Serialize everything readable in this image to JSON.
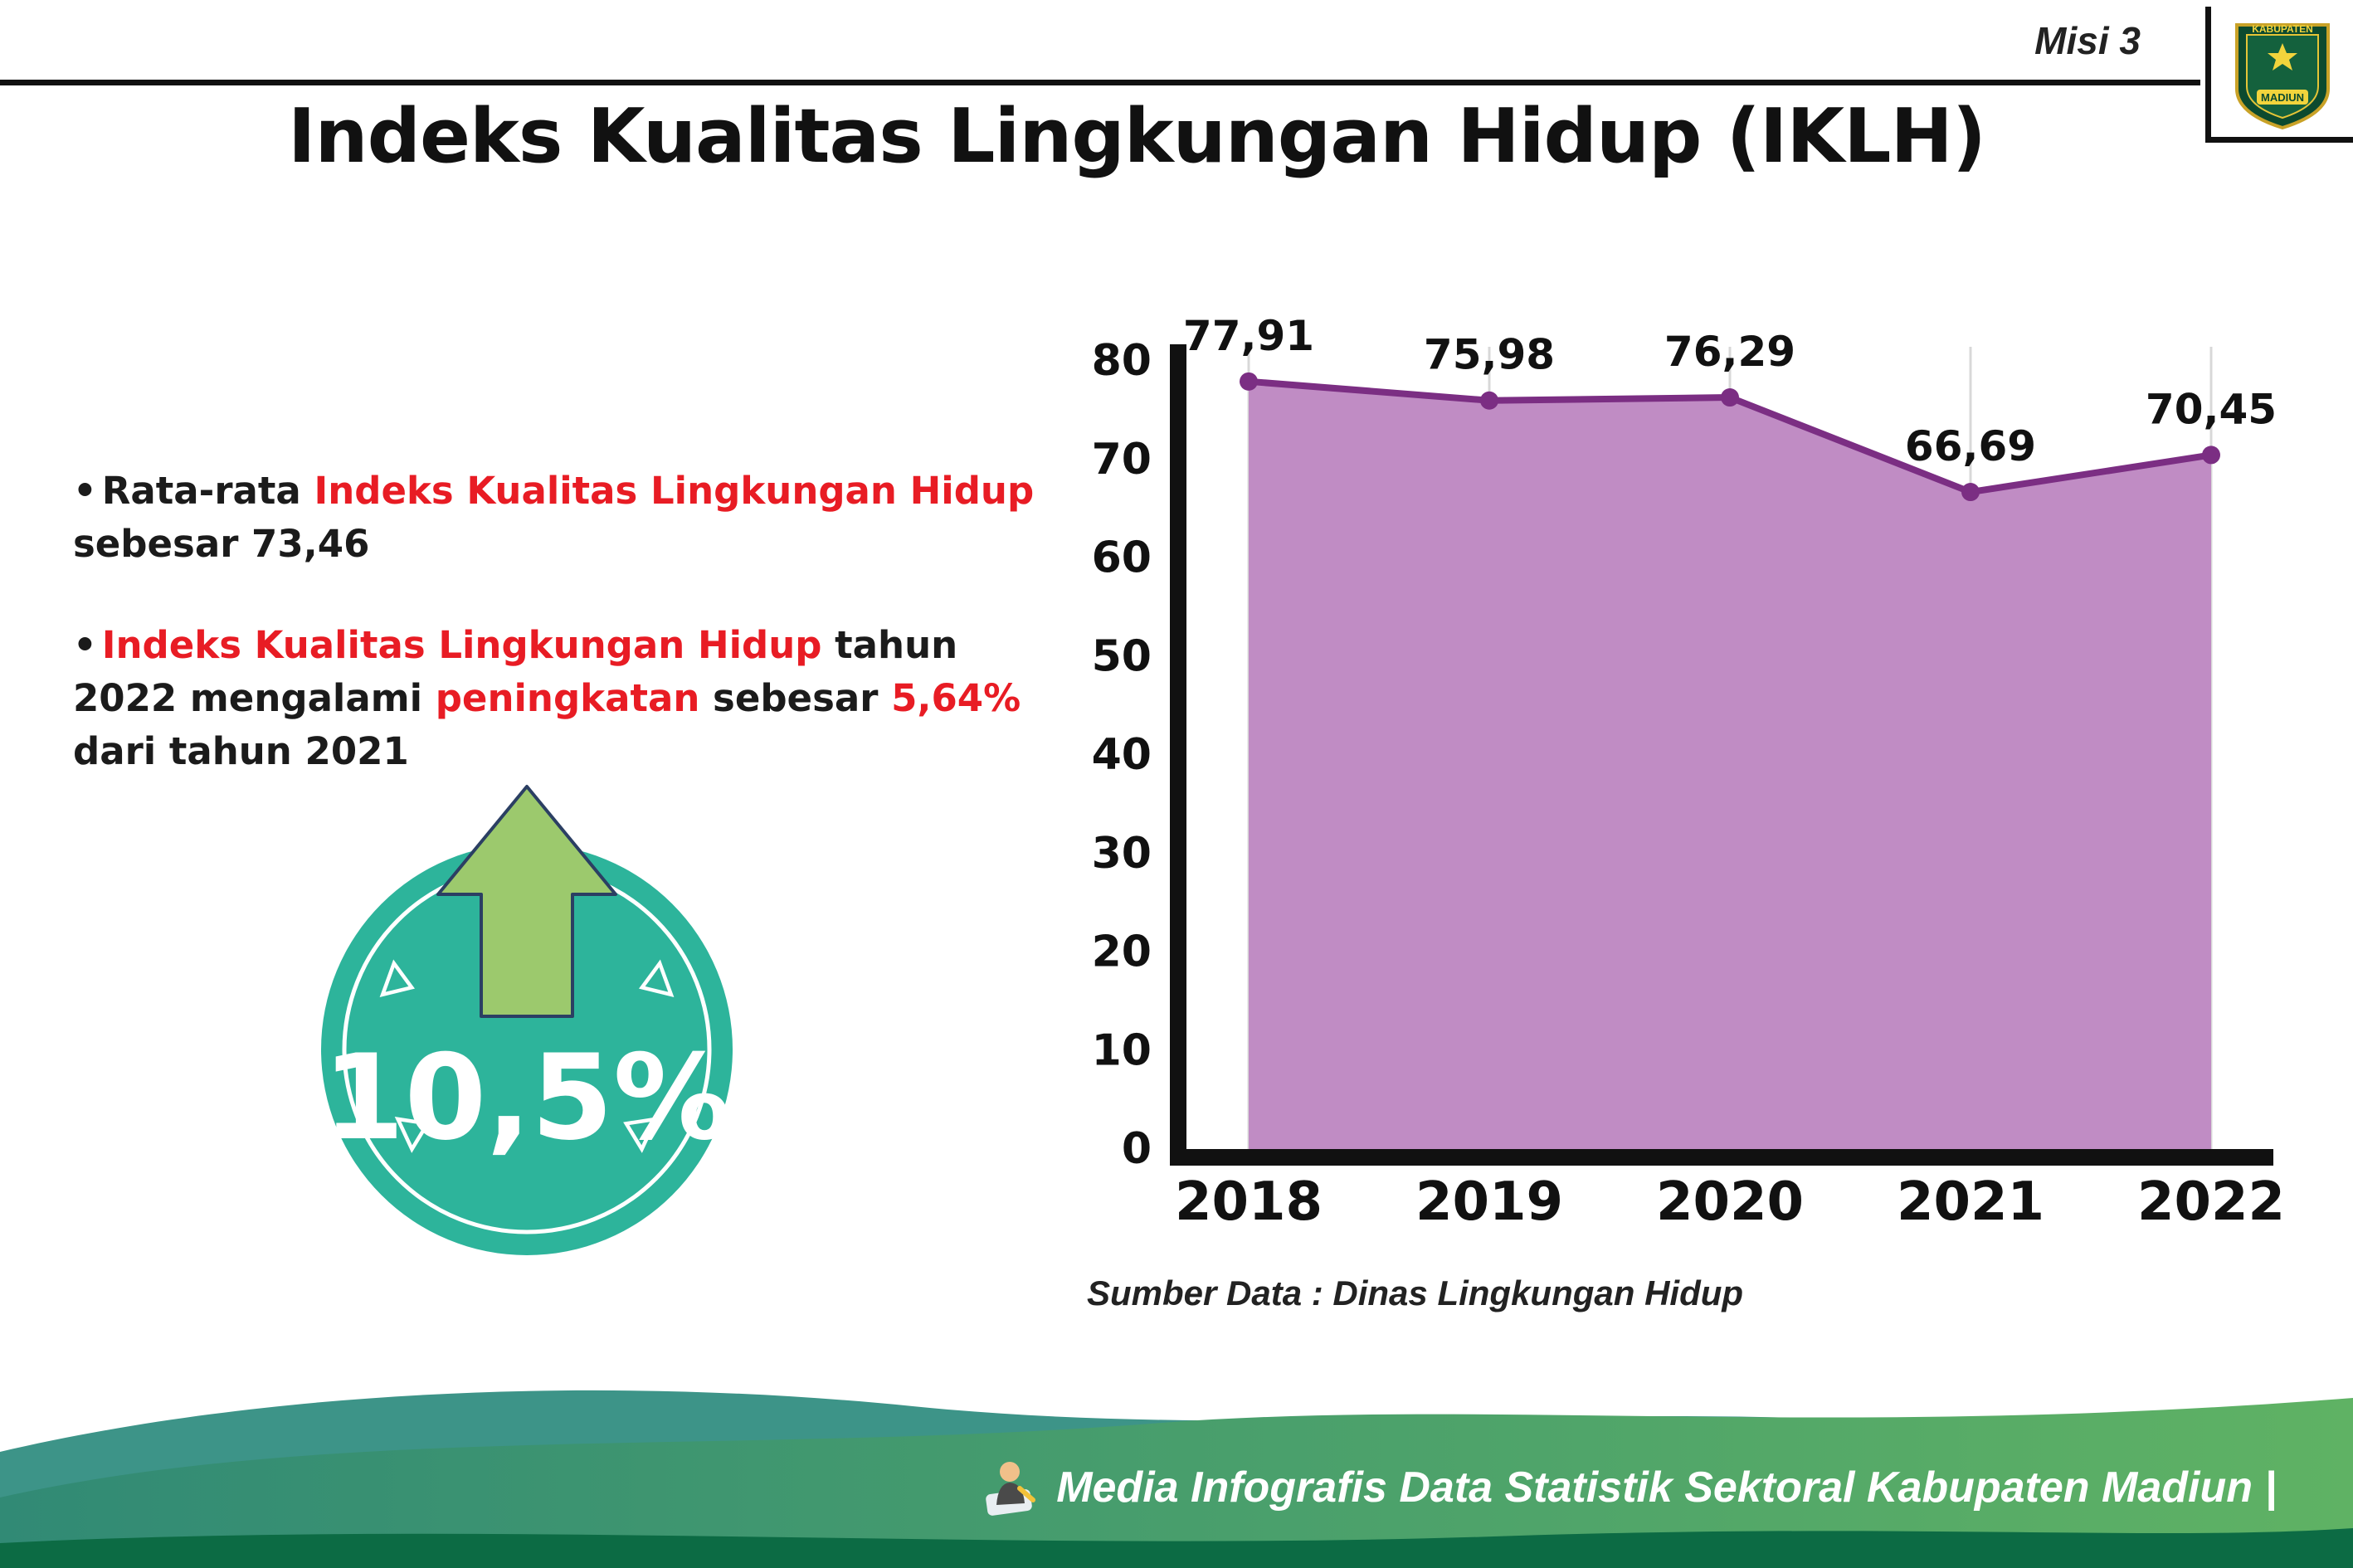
{
  "header": {
    "misi": "Misi 3",
    "title": "Indeks Kualitas Lingkungan Hidup (IKLH)",
    "logo": {
      "top_text": "KABUPATEN",
      "bottom_text": "MADIUN"
    }
  },
  "bullets": [
    {
      "parts": [
        {
          "text": "Rata-rata ",
          "color": "dark"
        },
        {
          "text": "Indeks Kualitas Lingkungan Hidup",
          "color": "red"
        },
        {
          "text": " sebesar 73,46",
          "color": "dark"
        }
      ]
    },
    {
      "parts": [
        {
          "text": "Indeks Kualitas Lingkungan Hidup",
          "color": "red"
        },
        {
          "text": " tahun 2022 mengalami ",
          "color": "dark"
        },
        {
          "text": "peningkatan",
          "color": "red"
        },
        {
          "text": " sebesar ",
          "color": "dark"
        },
        {
          "text": "5,64%",
          "color": "red"
        },
        {
          "text": " dari tahun 2021",
          "color": "dark"
        }
      ]
    }
  ],
  "highlight": {
    "value": "10,5%"
  },
  "chart_data": {
    "type": "area",
    "title": "",
    "xlabel": "",
    "ylabel": "",
    "x": [
      "2018",
      "2019",
      "2020",
      "2021",
      "2022"
    ],
    "values": [
      77.91,
      75.98,
      76.29,
      66.69,
      70.45
    ],
    "labels": [
      "77,91",
      "75,98",
      "76,29",
      "66,69",
      "70,45"
    ],
    "ylim": [
      0,
      80
    ],
    "ytick_step": 10,
    "grid": "vertical-only",
    "legend": "none",
    "line_color": "#7b2e83",
    "fill_color": "#c08cc4",
    "source_label": "Sumber Data : Dinas Lingkungan Hidup"
  },
  "footer": {
    "text": "Media Infografis Data Statistik Sektoral Kabupaten Madiun |"
  },
  "colors": {
    "accent_red": "#e81c24",
    "teal_circle": "#2db49b",
    "arrow_green": "#9cc96d",
    "arrow_outline": "#2b3f63",
    "footer_teal": "#3d9488",
    "footer_green_a": "#318a75",
    "footer_green_b": "#5fb264",
    "footer_dark_green": "#0c6b44"
  }
}
